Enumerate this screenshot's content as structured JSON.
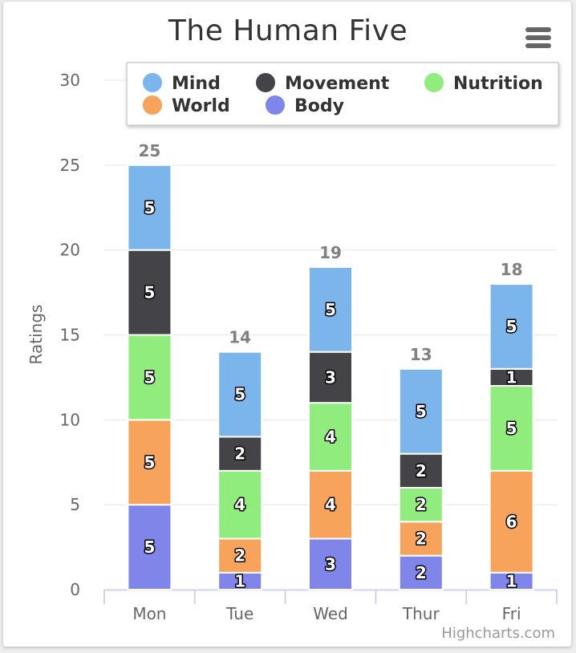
{
  "chart_data": {
    "type": "bar",
    "stacked": true,
    "title": "The Human Five",
    "xlabel": "",
    "ylabel": "Ratings",
    "categories": [
      "Mon",
      "Tue",
      "Wed",
      "Thur",
      "Fri"
    ],
    "ylim": [
      0,
      30
    ],
    "yticks": [
      0,
      5,
      10,
      15,
      20,
      25,
      30
    ],
    "grid": true,
    "legend_position": "top",
    "series": [
      {
        "name": "Mind",
        "color": "#7cb5ec",
        "values": [
          5,
          5,
          5,
          5,
          5
        ]
      },
      {
        "name": "Movement",
        "color": "#434348",
        "values": [
          5,
          2,
          3,
          2,
          1
        ]
      },
      {
        "name": "Nutrition",
        "color": "#90ed7d",
        "values": [
          5,
          4,
          4,
          2,
          5
        ]
      },
      {
        "name": "World",
        "color": "#f7a35c",
        "values": [
          5,
          2,
          4,
          2,
          6
        ]
      },
      {
        "name": "Body",
        "color": "#8085e9",
        "values": [
          5,
          1,
          3,
          2,
          1
        ]
      }
    ],
    "totals": [
      25,
      14,
      19,
      13,
      18
    ]
  },
  "credits": "Highcharts.com",
  "menu_icon": "hamburger-menu-icon"
}
